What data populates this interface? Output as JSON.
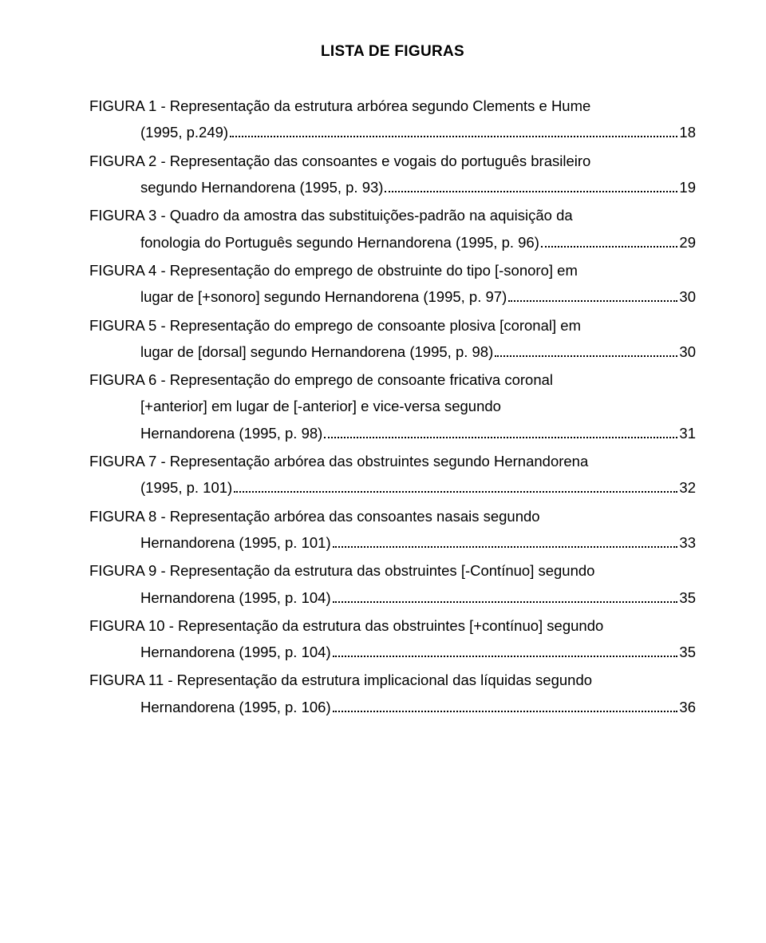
{
  "title": "LISTA DE FIGURAS",
  "entries": [
    {
      "lead": "FIGURA 1 - Representação da estrutura arbórea segundo Clements e Hume",
      "tail": "(1995, p.249)",
      "page": "18"
    },
    {
      "lead": "FIGURA 2 - Representação das consoantes e vogais do português brasileiro",
      "tail": "segundo Hernandorena (1995, p. 93)",
      "page": "19"
    },
    {
      "lead": "FIGURA 3 - Quadro da amostra das substituições-padrão na aquisição da",
      "tail": "fonologia do Português segundo Hernandorena (1995, p. 96)",
      "page": "29"
    },
    {
      "lead": "FIGURA 4 - Representação do emprego de obstruinte do tipo [-sonoro] em",
      "tail": "lugar de [+sonoro] segundo Hernandorena (1995, p. 97)",
      "page": "30"
    },
    {
      "lead": "FIGURA 5 - Representação do emprego de consoante plosiva [coronal] em",
      "tail": "lugar de [dorsal] segundo Hernandorena (1995, p. 98)",
      "page": "30"
    },
    {
      "lead": "FIGURA 6 - Representação do emprego de consoante fricativa coronal",
      "mid": "[+anterior] em lugar de [-anterior] e vice-versa segundo",
      "tail": "Hernandorena (1995, p. 98)",
      "page": "31"
    },
    {
      "lead": "FIGURA 7 - Representação arbórea das obstruintes segundo Hernandorena",
      "tail": "(1995, p. 101)",
      "page": "32"
    },
    {
      "lead": "FIGURA 8 - Representação arbórea das consoantes nasais segundo",
      "tail": "Hernandorena (1995, p. 101)",
      "page": "33"
    },
    {
      "lead": "FIGURA 9 - Representação da estrutura das obstruintes [-Contínuo] segundo",
      "tail": "Hernandorena (1995, p. 104)",
      "page": "35"
    },
    {
      "lead": "FIGURA 10 - Representação da estrutura das obstruintes [+contínuo] segundo",
      "tail": "Hernandorena (1995, p. 104)",
      "page": "35"
    },
    {
      "lead": "FIGURA 11 - Representação da estrutura implicacional das líquidas segundo",
      "tail": "Hernandorena (1995, p. 106)",
      "page": "36"
    }
  ]
}
